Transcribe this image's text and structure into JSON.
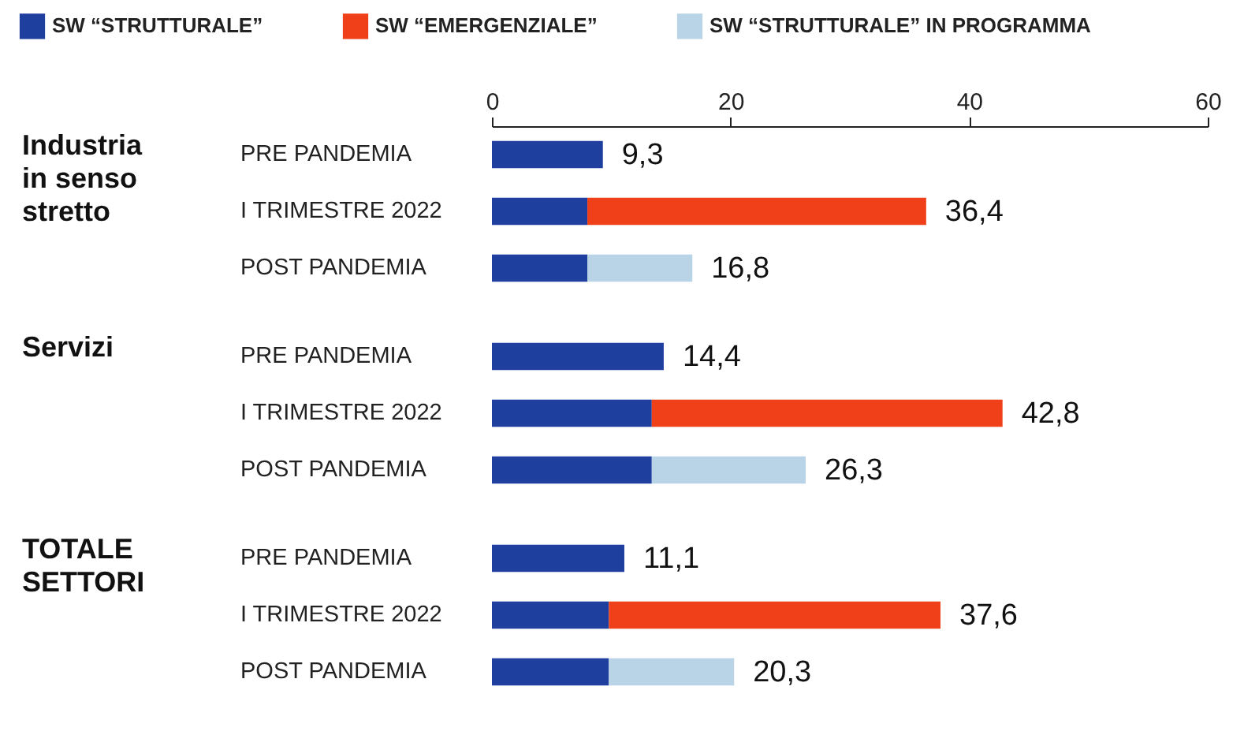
{
  "chart_data": [
    {
      "type": "bar",
      "orientation": "horizontal",
      "stacked": true,
      "title": "Industria in senso stretto",
      "categories": [
        "PRE PANDEMIA",
        "I TRIMESTRE 2022",
        "POST PANDEMIA"
      ],
      "xlim": [
        0,
        60
      ],
      "xticks": [
        0,
        20,
        40,
        60
      ],
      "legend": "top left",
      "totals": [
        "9,3",
        "36,4",
        "16,8"
      ],
      "series": [
        {
          "name": "SW “STRUTTURALE”",
          "color": "#1f3f9e",
          "values": [
            9.3,
            8.0,
            8.0
          ]
        },
        {
          "name": "SW “EMERGENZIALE”",
          "color": "#f0401a",
          "values": [
            null,
            28.4,
            null
          ]
        },
        {
          "name": "SW “STRUTTURALE” IN PROGRAMMA",
          "color": "#b8d4e6",
          "values": [
            null,
            null,
            8.8
          ]
        }
      ]
    },
    {
      "type": "bar",
      "orientation": "horizontal",
      "stacked": true,
      "title": "Servizi",
      "categories": [
        "PRE PANDEMIA",
        "I TRIMESTRE 2022",
        "POST PANDEMIA"
      ],
      "xlim": [
        0,
        60
      ],
      "xticks": [
        0,
        20,
        40,
        60
      ],
      "tick_labels": "y",
      "totals": [
        "14,4",
        "42,8",
        "26,3"
      ],
      "series": [
        {
          "color": "#1f3f9e",
          "values": [
            14.4,
            13.4,
            13.4
          ]
        },
        {
          "color": "#f0401a",
          "values": [
            null,
            29.4,
            null
          ]
        },
        {
          "color": "#b8d4e6",
          "values": [
            null,
            null,
            12.9
          ]
        }
      ]
    },
    {
      "type": "bar",
      "orientation": "horizontal",
      "stacked": true,
      "title": "TOTALE SETTORI",
      "categories": [
        "PRE PANDEMIA",
        "I TRIMESTRE 2022",
        "POST PANDEMIA"
      ],
      "xlim": [
        0,
        60
      ],
      "xticks": [
        0,
        20,
        40,
        60
      ],
      "tick_labels": "y",
      "totals": [
        "11,1",
        "37,6",
        "20,3"
      ],
      "series": [
        {
          "color": "#1f3f9e",
          "values": [
            11.1,
            9.8,
            9.8
          ]
        },
        {
          "color": "#f0401a",
          "values": [
            null,
            27.8,
            null
          ]
        },
        {
          "color": "#b8d4e6",
          "values": [
            null,
            null,
            10.5
          ]
        }
      ]
    }
  ]
}
